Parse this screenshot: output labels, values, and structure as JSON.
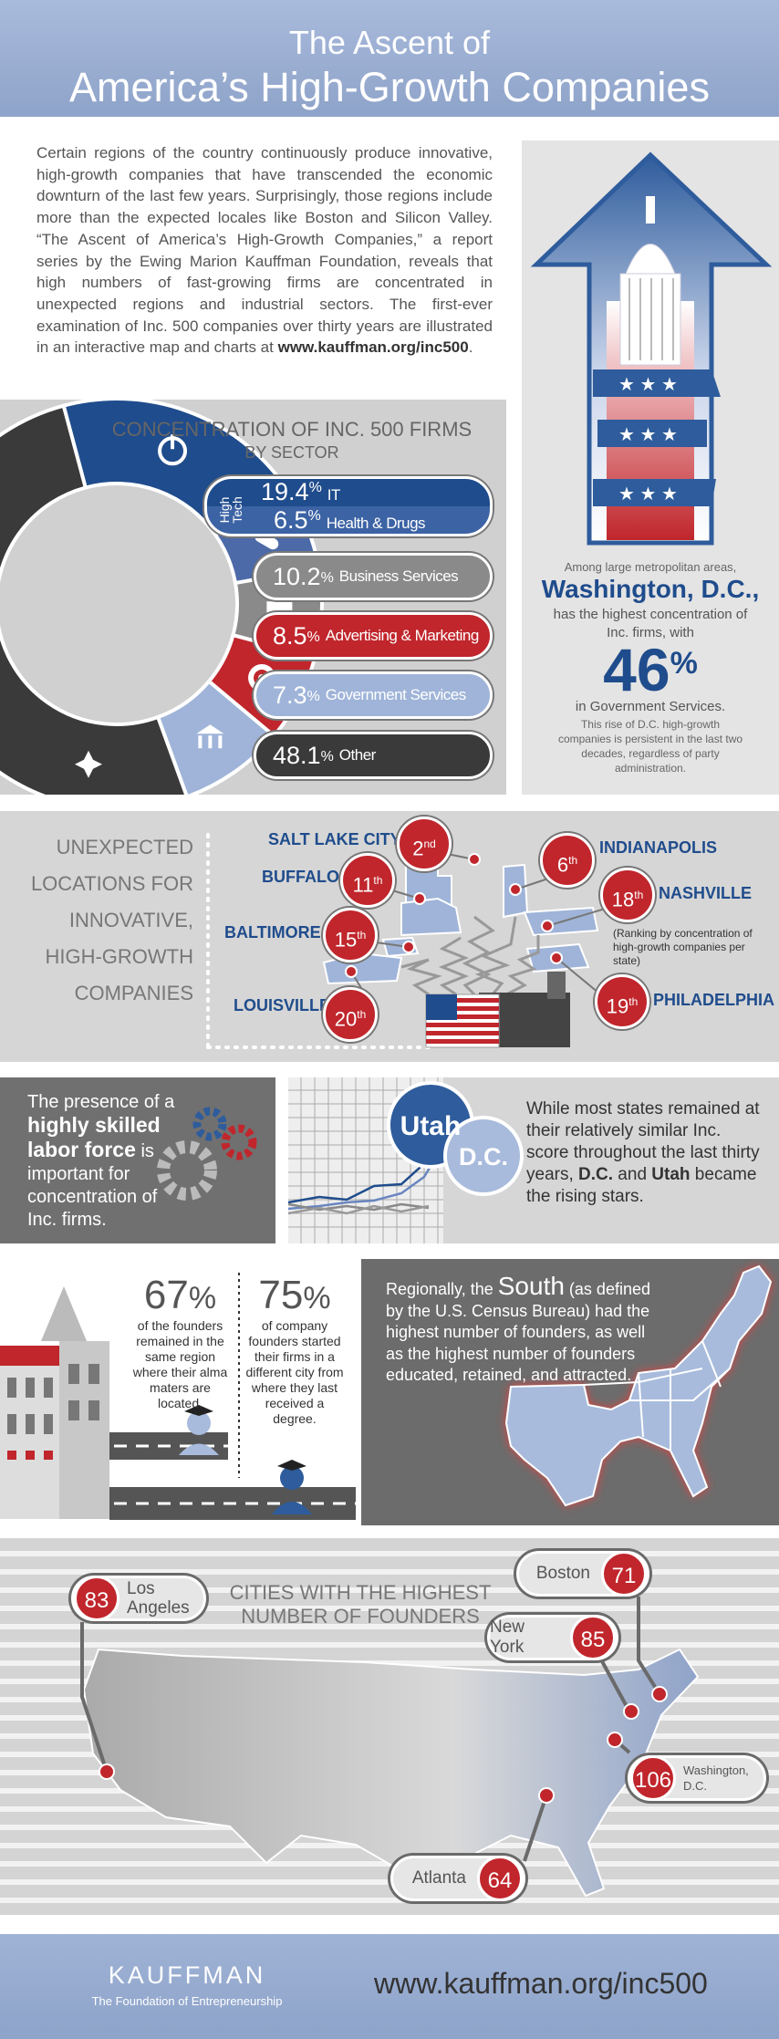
{
  "header": {
    "title_line1": "The Ascent of",
    "title_line2": "America’s High-Growth Companies"
  },
  "intro": {
    "text": "Certain regions of the country continuously produce innovative, high-growth companies that have transcended the economic downturn of the last few years. Surprisingly, those regions include more than the expected locales like Boston and Silicon Valley. “The Ascent of America’s High-Growth Companies,” a report series by the Ewing Marion Kauffman Foundation, reveals that high numbers of fast-growing firms are concentrated in unexpected regions and industrial sectors. The first-ever examination of Inc. 500 companies over thirty years are illustrated in an interactive map and charts at ",
    "link": "www.kauffman.org/inc500",
    "end": "."
  },
  "dc_panel": {
    "intro": "Among large metropolitan areas,",
    "city": "Washington, D.C.,",
    "line": "has the highest concentration of Inc. firms, with",
    "number": "46",
    "unit": "%",
    "sector": "in Government Services.",
    "note": "This rise of D.C. high-growth companies is persistent in the last two decades, regardless of party administration."
  },
  "sector": {
    "title": "CONCENTRATION OF INC. 500 FIRMS",
    "subtitle": "BY SECTOR",
    "group_label": "High Tech",
    "items": [
      {
        "number": "19.4",
        "unit": "%",
        "label": "IT"
      },
      {
        "number": "6.5",
        "unit": "%",
        "label": "Health & Drugs"
      },
      {
        "number": "10.2",
        "unit": "%",
        "label": "Business Services"
      },
      {
        "number": "8.5",
        "unit": "%",
        "label": "Advertising & Marketing"
      },
      {
        "number": "7.3",
        "unit": "%",
        "label": "Government Services"
      },
      {
        "number": "48.1",
        "unit": "%",
        "label": "Other"
      }
    ]
  },
  "locations": {
    "title_lines": [
      "UNEXPECTED",
      "LOCATIONS FOR",
      "INNOVATIVE,",
      "HIGH-GROWTH",
      "COMPANIES"
    ],
    "cities": [
      {
        "name": "SALT LAKE CITY",
        "rank": "2",
        "suffix": "nd"
      },
      {
        "name": "BUFFALO",
        "rank": "11",
        "suffix": "th"
      },
      {
        "name": "BALTIMORE",
        "rank": "15",
        "suffix": "th"
      },
      {
        "name": "LOUISVILLE",
        "rank": "20",
        "suffix": "th"
      },
      {
        "name": "INDIANAPOLIS",
        "rank": "6",
        "suffix": "th"
      },
      {
        "name": "NASHVILLE",
        "rank": "18",
        "suffix": "th"
      },
      {
        "name": "PHILADELPHIA",
        "rank": "19",
        "suffix": "th"
      }
    ],
    "note": "(Ranking by concentration of high-growth companies per state)"
  },
  "labor": {
    "pre": "The presence of a",
    "bold": "highly skilled labor force",
    "post": "is important for concentration of Inc. firms."
  },
  "rising": {
    "badges": [
      "Utah",
      "D.C."
    ],
    "text": "While most states remained at their relatively similar Inc. score throughout the last thirty years, ",
    "bold1": "D.C.",
    "mid": " and ",
    "bold2": "Utah",
    "end": " became the rising stars."
  },
  "founders": {
    "stats": [
      {
        "number": "67",
        "unit": "%",
        "text": "of the founders remained in the same region where their alma maters are located."
      },
      {
        "number": "75",
        "unit": "%",
        "text": "of company founders started their firms in a different city from where they last received a degree."
      }
    ]
  },
  "south": {
    "pre": "Regionally, the ",
    "bold": "South",
    "text": " (as defined by the U.S. Census Bureau) had the highest number of founders, as well as the highest number of founders educated, retained, and attracted."
  },
  "cities": {
    "title": "CITIES WITH THE HIGHEST NUMBER OF FOUNDERS",
    "items": [
      {
        "name": "Los Angeles",
        "value": "83"
      },
      {
        "name": "Boston",
        "value": "71"
      },
      {
        "name": "New York",
        "value": "85"
      },
      {
        "name": "Washington, D.C.",
        "value": "106"
      },
      {
        "name": "Atlanta",
        "value": "64"
      }
    ]
  },
  "footer": {
    "brand": "KAUFFMAN",
    "tagline": "The Foundation of Entrepreneurship",
    "url": "www.kauffman.org/inc500"
  }
}
